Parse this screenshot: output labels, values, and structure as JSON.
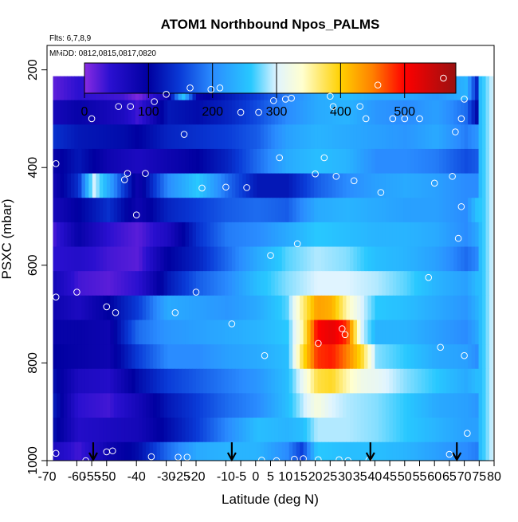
{
  "chart_data": {
    "type": "heatmap",
    "title": "ATOM1 Northbound Npos_PALMS",
    "subtitle_flights": "Flts: 6,7,8,9",
    "subtitle_dates": "MMDD: 0812,0815,0817,0820",
    "xlabel": "Latitude (deg N)",
    "ylabel": "PSXC (mbar)",
    "xlim": [
      -70,
      80
    ],
    "ylim": [
      1000,
      150
    ],
    "x_ticks": [
      "-70",
      "-55",
      "-40",
      "-25",
      "-10",
      "0",
      "10",
      "20",
      "30",
      "40",
      "50",
      "60",
      "70",
      "80"
    ],
    "x_tick_values": [
      -70,
      -55,
      -40,
      -25,
      -10,
      0,
      10,
      20,
      30,
      40,
      50,
      60,
      70,
      80
    ],
    "x_minor_ticks": [
      -60,
      -50,
      -30,
      -20,
      -5,
      5,
      15,
      25,
      35,
      45,
      55,
      65,
      75
    ],
    "x_minor_labels": [
      "-60",
      "-50",
      "-30",
      "-20",
      "-5",
      "5",
      "15",
      "25",
      "35",
      "45",
      "55",
      "65",
      "75"
    ],
    "y_ticks": [
      "200",
      "400",
      "600",
      "800",
      "1000"
    ],
    "y_tick_values": [
      200,
      400,
      600,
      800,
      1000
    ],
    "colorbar": {
      "min": 0,
      "max": 580,
      "ticks": [
        "0",
        "100",
        "200",
        "300",
        "400",
        "500"
      ],
      "tick_values": [
        0,
        100,
        200,
        300,
        400,
        500
      ],
      "stops": [
        {
          "v": 0,
          "c": "#8a2be2"
        },
        {
          "v": 40,
          "c": "#2a10d0"
        },
        {
          "v": 100,
          "c": "#0000a0"
        },
        {
          "v": 150,
          "c": "#0a3cd8"
        },
        {
          "v": 200,
          "c": "#2a8cff"
        },
        {
          "v": 260,
          "c": "#28c8ff"
        },
        {
          "v": 300,
          "c": "#e0f4ff"
        },
        {
          "v": 340,
          "c": "#ffffd0"
        },
        {
          "v": 400,
          "c": "#ffd000"
        },
        {
          "v": 450,
          "c": "#ff8000"
        },
        {
          "v": 500,
          "c": "#ff0000"
        },
        {
          "v": 580,
          "c": "#9a1010"
        }
      ]
    },
    "pressure_bins": [
      {
        "p": [
          213,
          262
        ],
        "lats": [
          -68,
          -60,
          -45,
          -40,
          -30,
          -25,
          -20,
          -10,
          0,
          10,
          20,
          30,
          40,
          50,
          60,
          70,
          74
        ],
        "vals": [
          20,
          40,
          30,
          5,
          80,
          260,
          90,
          120,
          150,
          190,
          230,
          250,
          230,
          230,
          210,
          240,
          120
        ]
      },
      {
        "p": [
          262,
          312
        ],
        "lats": [
          -68,
          -60,
          -45,
          -40,
          -30,
          -20,
          -10,
          0,
          10,
          20,
          30,
          40,
          50,
          60,
          70,
          74
        ],
        "vals": [
          70,
          90,
          60,
          30,
          120,
          110,
          130,
          160,
          200,
          230,
          240,
          210,
          200,
          220,
          180,
          100
        ]
      },
      {
        "p": [
          312,
          362
        ],
        "lats": [
          -68,
          -60,
          -45,
          -40,
          -30,
          -20,
          -10,
          0,
          10,
          20,
          30,
          40,
          50,
          60,
          70,
          74
        ],
        "vals": [
          140,
          120,
          110,
          100,
          130,
          140,
          150,
          170,
          220,
          240,
          230,
          220,
          210,
          230,
          190,
          210
        ]
      },
      {
        "p": [
          362,
          412
        ],
        "lats": [
          -68,
          -60,
          -50,
          -40,
          -30,
          -20,
          -10,
          0,
          10,
          20,
          30,
          40,
          50,
          60,
          70,
          74
        ],
        "vals": [
          90,
          120,
          80,
          60,
          80,
          100,
          130,
          180,
          230,
          250,
          240,
          200,
          200,
          190,
          160,
          170
        ]
      },
      {
        "p": [
          412,
          462
        ],
        "lats": [
          -68,
          -60,
          -55,
          -50,
          -45,
          -40,
          -30,
          -20,
          -10,
          0,
          10,
          20,
          30,
          40,
          50,
          60,
          70,
          74
        ],
        "vals": [
          80,
          140,
          300,
          230,
          150,
          80,
          200,
          260,
          180,
          120,
          120,
          170,
          200,
          220,
          230,
          220,
          200,
          200
        ]
      },
      {
        "p": [
          462,
          512
        ],
        "lats": [
          -68,
          -60,
          -50,
          -40,
          -30,
          -20,
          -10,
          0,
          10,
          20,
          30,
          40,
          50,
          60,
          70,
          74
        ],
        "vals": [
          70,
          100,
          140,
          80,
          130,
          150,
          170,
          180,
          170,
          230,
          240,
          230,
          220,
          220,
          200,
          260
        ]
      },
      {
        "p": [
          512,
          562
        ],
        "lats": [
          -68,
          -60,
          -50,
          -40,
          -30,
          -20,
          -10,
          0,
          10,
          20,
          30,
          40,
          50,
          60,
          70,
          74
        ],
        "vals": [
          30,
          90,
          40,
          20,
          60,
          140,
          190,
          200,
          230,
          260,
          250,
          240,
          240,
          230,
          200,
          230
        ]
      },
      {
        "p": [
          562,
          612
        ],
        "lats": [
          -68,
          -60,
          -50,
          -40,
          -30,
          -20,
          -10,
          0,
          10,
          20,
          30,
          40,
          50,
          60,
          70,
          74
        ],
        "vals": [
          40,
          50,
          30,
          20,
          100,
          130,
          180,
          230,
          270,
          290,
          280,
          250,
          240,
          220,
          180,
          200
        ]
      },
      {
        "p": [
          612,
          662
        ],
        "lats": [
          -68,
          -60,
          -50,
          -40,
          -30,
          -20,
          -10,
          0,
          10,
          20,
          30,
          40,
          50,
          60,
          70,
          74
        ],
        "vals": [
          70,
          30,
          20,
          40,
          120,
          170,
          200,
          250,
          280,
          300,
          300,
          290,
          270,
          240,
          220,
          250
        ]
      },
      {
        "p": [
          662,
          712
        ],
        "lats": [
          -68,
          -60,
          -50,
          -40,
          -30,
          -20,
          -10,
          0,
          10,
          15,
          20,
          25,
          30,
          35,
          40,
          50,
          60,
          70,
          74
        ],
        "vals": [
          80,
          60,
          100,
          150,
          230,
          220,
          210,
          230,
          270,
          360,
          430,
          420,
          350,
          300,
          260,
          250,
          230,
          210,
          240
        ]
      },
      {
        "p": [
          712,
          762
        ],
        "lats": [
          -68,
          -60,
          -50,
          -40,
          -30,
          -20,
          -10,
          0,
          10,
          15,
          20,
          25,
          30,
          35,
          40,
          50,
          60,
          70,
          74
        ],
        "vals": [
          90,
          90,
          80,
          180,
          210,
          220,
          230,
          240,
          260,
          350,
          500,
          520,
          480,
          300,
          240,
          240,
          220,
          200,
          230
        ]
      },
      {
        "p": [
          762,
          812
        ],
        "lats": [
          -68,
          -60,
          -50,
          -40,
          -30,
          -20,
          -10,
          0,
          10,
          15,
          20,
          25,
          30,
          35,
          40,
          50,
          60,
          70,
          74
        ],
        "vals": [
          100,
          90,
          80,
          150,
          200,
          200,
          220,
          230,
          250,
          380,
          480,
          490,
          450,
          390,
          280,
          260,
          230,
          220,
          200
        ]
      },
      {
        "p": [
          812,
          862
        ],
        "lats": [
          -68,
          -60,
          -50,
          -40,
          -30,
          -20,
          -10,
          0,
          10,
          15,
          20,
          25,
          30,
          35,
          40,
          50,
          60,
          70,
          74
        ],
        "vals": [
          110,
          60,
          50,
          110,
          150,
          170,
          190,
          210,
          250,
          310,
          380,
          390,
          350,
          320,
          310,
          280,
          260,
          230,
          250
        ]
      },
      {
        "p": [
          862,
          912
        ],
        "lats": [
          -68,
          -60,
          -50,
          -40,
          -30,
          -20,
          -10,
          0,
          10,
          15,
          20,
          25,
          30,
          40,
          50,
          60,
          70,
          74
        ],
        "vals": [
          120,
          40,
          30,
          70,
          120,
          150,
          180,
          200,
          250,
          290,
          330,
          300,
          290,
          280,
          260,
          230,
          220,
          210
        ]
      },
      {
        "p": [
          912,
          962
        ],
        "lats": [
          -68,
          -60,
          -50,
          -40,
          -30,
          -20,
          -10,
          0,
          10,
          15,
          20,
          30,
          40,
          50,
          60,
          70,
          74
        ],
        "vals": [
          110,
          50,
          60,
          70,
          110,
          150,
          200,
          250,
          240,
          250,
          290,
          290,
          280,
          260,
          240,
          220,
          220
        ]
      },
      {
        "p": [
          962,
          1012
        ],
        "lats": [
          -68,
          -60,
          -50,
          -40,
          -30,
          -20,
          -10,
          0,
          10,
          15,
          20,
          30,
          40,
          50,
          60,
          70,
          74
        ],
        "vals": [
          60,
          30,
          80,
          110,
          180,
          230,
          240,
          240,
          200,
          150,
          260,
          250,
          250,
          240,
          220,
          200,
          190
        ]
      }
    ],
    "observations": [
      [
        -67,
        205
      ],
      [
        -67,
        392
      ],
      [
        -67,
        665
      ],
      [
        -67,
        985
      ],
      [
        -65,
        168
      ],
      [
        -60,
        655
      ],
      [
        -57,
        1000
      ],
      [
        -55,
        300
      ],
      [
        -50,
        982
      ],
      [
        -50,
        685
      ],
      [
        -48,
        980
      ],
      [
        -47,
        697
      ],
      [
        -46,
        275
      ],
      [
        -44,
        425
      ],
      [
        -43,
        412
      ],
      [
        -42,
        275
      ],
      [
        -40,
        497
      ],
      [
        -37,
        412
      ],
      [
        -35,
        992
      ],
      [
        -34,
        265
      ],
      [
        -30,
        250
      ],
      [
        -27,
        697
      ],
      [
        -26,
        993
      ],
      [
        -24,
        332
      ],
      [
        -23,
        993
      ],
      [
        -22,
        237
      ],
      [
        -20,
        655
      ],
      [
        -18,
        442
      ],
      [
        -15,
        240
      ],
      [
        -12,
        237
      ],
      [
        -10,
        440
      ],
      [
        -8,
        720
      ],
      [
        -5,
        287
      ],
      [
        -3,
        441
      ],
      [
        1,
        287
      ],
      [
        2,
        999
      ],
      [
        3,
        785
      ],
      [
        5,
        580
      ],
      [
        6,
        263
      ],
      [
        7,
        1000
      ],
      [
        8,
        380
      ],
      [
        10,
        260
      ],
      [
        12,
        258
      ],
      [
        13,
        997
      ],
      [
        14,
        556
      ],
      [
        16,
        996
      ],
      [
        20,
        413
      ],
      [
        21,
        760
      ],
      [
        21,
        998
      ],
      [
        23,
        380
      ],
      [
        25,
        254
      ],
      [
        26,
        275
      ],
      [
        27,
        418
      ],
      [
        28,
        998
      ],
      [
        29,
        730
      ],
      [
        30,
        742
      ],
      [
        31,
        1000
      ],
      [
        33,
        427
      ],
      [
        35,
        275
      ],
      [
        37,
        300
      ],
      [
        38,
        999
      ],
      [
        41,
        231
      ],
      [
        42,
        451
      ],
      [
        46,
        300
      ],
      [
        50,
        300
      ],
      [
        55,
        300
      ],
      [
        58,
        625
      ],
      [
        60,
        432
      ],
      [
        62,
        768
      ],
      [
        63,
        217
      ],
      [
        65,
        987
      ],
      [
        66,
        418
      ],
      [
        67,
        327
      ],
      [
        68,
        545
      ],
      [
        69,
        480
      ],
      [
        69,
        300
      ],
      [
        70,
        260
      ],
      [
        70,
        785
      ],
      [
        71,
        944
      ]
    ],
    "arrows": [
      -54.5,
      -8,
      38.5,
      67.5
    ]
  }
}
